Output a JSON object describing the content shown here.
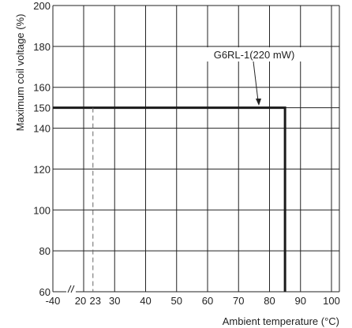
{
  "chart_data": {
    "type": "line",
    "xlabel": "Ambient temperature (°C)",
    "ylabel": "Maximum coil voltage (%)",
    "x_ticks": [
      "-40",
      "20",
      "23",
      "30",
      "40",
      "50",
      "60",
      "70",
      "80",
      "90",
      "100"
    ],
    "y_ticks": [
      "60",
      "80",
      "100",
      "120",
      "140",
      "150",
      "160",
      "180",
      "200"
    ],
    "x_axis_break": "between -40 and 20",
    "ylim": [
      60,
      200
    ],
    "grid": true,
    "series": [
      {
        "name": "G6RL-1(220 mW)",
        "style": "solid-bold",
        "color": "#1a1a1a",
        "points": [
          [
            -40,
            150
          ],
          [
            85,
            150
          ],
          [
            85,
            60
          ]
        ]
      },
      {
        "style": "dashed",
        "color": "#666666",
        "points": [
          [
            23,
            150
          ],
          [
            23,
            60
          ]
        ]
      }
    ],
    "annotation": {
      "text": "G6RL-1(220 mW)",
      "points_to": [
        75,
        150
      ]
    }
  }
}
